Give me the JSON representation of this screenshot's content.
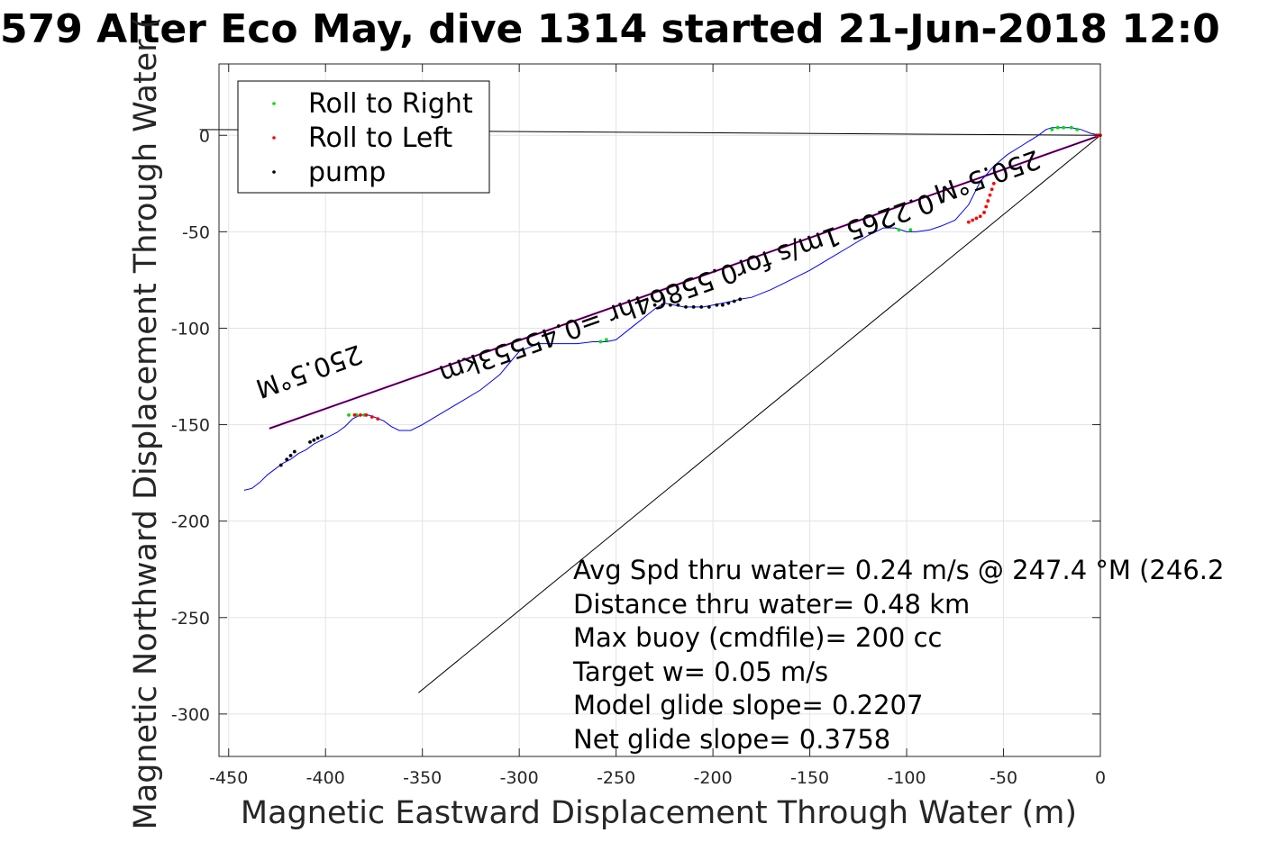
{
  "chart_data": {
    "type": "line",
    "title": "579 Alter Eco May, dive 1314 started 21-Jun-2018 12:0",
    "xlabel": "Magnetic Eastward Displacement Through Water (m)",
    "ylabel": "Magnetic Northward Displacement Through Water (",
    "xlim": [
      -455,
      0
    ],
    "ylim": [
      -322,
      37
    ],
    "xticks": [
      -450,
      -400,
      -350,
      -300,
      -250,
      -200,
      -150,
      -100,
      -50,
      0
    ],
    "xtick_labels": [
      "-450",
      "-400",
      "-350",
      "-300",
      "-250",
      "-200",
      "-150",
      "-100",
      "-50",
      "0"
    ],
    "yticks": [
      0,
      -50,
      -100,
      -150,
      -200,
      -250,
      -300
    ],
    "ytick_labels": [
      "0",
      "-50",
      "-100",
      "-150",
      "-200",
      "-250",
      "-300"
    ],
    "grid": true,
    "legend": {
      "placement": "top-left",
      "entries": [
        {
          "label": "Roll to Right",
          "color": "#00dd00"
        },
        {
          "label": "Roll to Left",
          "color": "#ff0000"
        },
        {
          "label": "pump",
          "color": "#000000"
        }
      ]
    },
    "series": [
      {
        "kind": "track",
        "color": "#0000ff",
        "x": [
          0,
          -5,
          -10,
          -15,
          -20,
          -25,
          -28,
          -32,
          -40,
          -48,
          -55,
          -62,
          -68,
          -75,
          -82,
          -88,
          -95,
          -100,
          -106,
          -112,
          -120,
          -130,
          -140,
          -150,
          -160,
          -170,
          -180,
          -186,
          -190,
          -195,
          -200,
          -205,
          -210,
          -215,
          -220,
          -225,
          -230,
          -235,
          -240,
          -245,
          -250,
          -255,
          -258,
          -262,
          -270,
          -280,
          -290,
          -300,
          -305,
          -310,
          -320,
          -330,
          -340,
          -350,
          -356,
          -362,
          -366,
          -370,
          -375,
          -378,
          -382,
          -386,
          -390,
          -394,
          -398,
          -402,
          -406,
          -410,
          -414,
          -418,
          -422,
          -426,
          -430,
          -434,
          -438,
          -442
        ],
        "y": [
          0,
          1,
          3,
          4,
          4,
          4,
          3,
          0,
          -5,
          -10,
          -16,
          -24,
          -36,
          -44,
          -47,
          -49,
          -50,
          -50,
          -48,
          -48,
          -52,
          -58,
          -64,
          -70,
          -75,
          -80,
          -84,
          -85,
          -86,
          -87,
          -88,
          -89,
          -89,
          -89,
          -88,
          -87,
          -90,
          -94,
          -98,
          -102,
          -106,
          -107,
          -107,
          -107,
          -108,
          -108,
          -108,
          -112,
          -118,
          -124,
          -132,
          -138,
          -144,
          -150,
          -153,
          -153,
          -151,
          -148,
          -146,
          -145,
          -145,
          -147,
          -151,
          -154,
          -156,
          -158,
          -160,
          -163,
          -165,
          -168,
          -170,
          -173,
          -176,
          -180,
          -183,
          -184
        ]
      },
      {
        "kind": "points",
        "name": "Roll to Right",
        "color": "#00dd00",
        "x": [
          -25,
          -22,
          -19,
          -15,
          -12,
          -98,
          -104,
          -255,
          -258,
          -380,
          -384,
          -388
        ],
        "y": [
          3,
          4,
          4,
          4,
          3,
          -49,
          -49,
          -106,
          -107,
          -145,
          -145,
          -145
        ]
      },
      {
        "kind": "points",
        "name": "Roll to Left",
        "color": "#ff0000",
        "x": [
          0,
          -1,
          -2,
          -55,
          -56,
          -57,
          -58,
          -59,
          -60,
          -62,
          -64,
          -66,
          -68,
          -373,
          -376,
          -379,
          -382,
          -385
        ],
        "y": [
          0,
          0,
          0,
          -25,
          -28,
          -31,
          -34,
          -37,
          -40,
          -42,
          -43,
          -44,
          -45,
          -147,
          -146,
          -145,
          -145,
          -145
        ]
      },
      {
        "kind": "points",
        "name": "pump",
        "color": "#000000",
        "x": [
          -186,
          -189,
          -192,
          -195,
          -198,
          -202,
          -206,
          -210,
          -214,
          -218,
          -222,
          -226,
          -230,
          -402,
          -404,
          -406,
          -408,
          -416,
          -418,
          -420,
          -423
        ],
        "y": [
          -85,
          -86,
          -87,
          -88,
          -88,
          -89,
          -89,
          -89,
          -89,
          -88,
          -88,
          -88,
          -88,
          -156,
          -157,
          -158,
          -159,
          -164,
          -166,
          -168,
          -171
        ]
      },
      {
        "kind": "line",
        "color": "#cc00cc",
        "x": [
          0,
          -429
        ],
        "y": [
          0,
          -152
        ]
      },
      {
        "kind": "line",
        "color": "#000000",
        "x": [
          0,
          -429
        ],
        "y": [
          0,
          -152
        ]
      },
      {
        "kind": "line",
        "color": "#000000",
        "x": [
          0,
          -352
        ],
        "y": [
          0,
          -289
        ]
      },
      {
        "kind": "line",
        "color": "#000000",
        "x": [
          0,
          -465
        ],
        "y": [
          0,
          3
        ]
      }
    ],
    "track_labels": [
      {
        "text": "250.5°M",
        "x": -410,
        "y": -118,
        "angle_deg": 19.5
      },
      {
        "text": "0.2265 1m/s for0.55864hr =0.45553km",
        "x": -215,
        "y": -75,
        "angle_deg": 19.5
      },
      {
        "text": "250.5°M",
        "x": -60,
        "y": -17,
        "angle_deg": 19.5
      }
    ],
    "annotations": [
      "Avg Spd thru water=  0.24 m/s @ 247.4 °M (246.2",
      "Distance thru water=  0.48 km",
      "Max buoy (cmdfile)= 200 cc",
      "Target w= 0.05 m/s",
      "Model glide slope= 0.2207",
      "Net glide slope= 0.3758"
    ]
  }
}
